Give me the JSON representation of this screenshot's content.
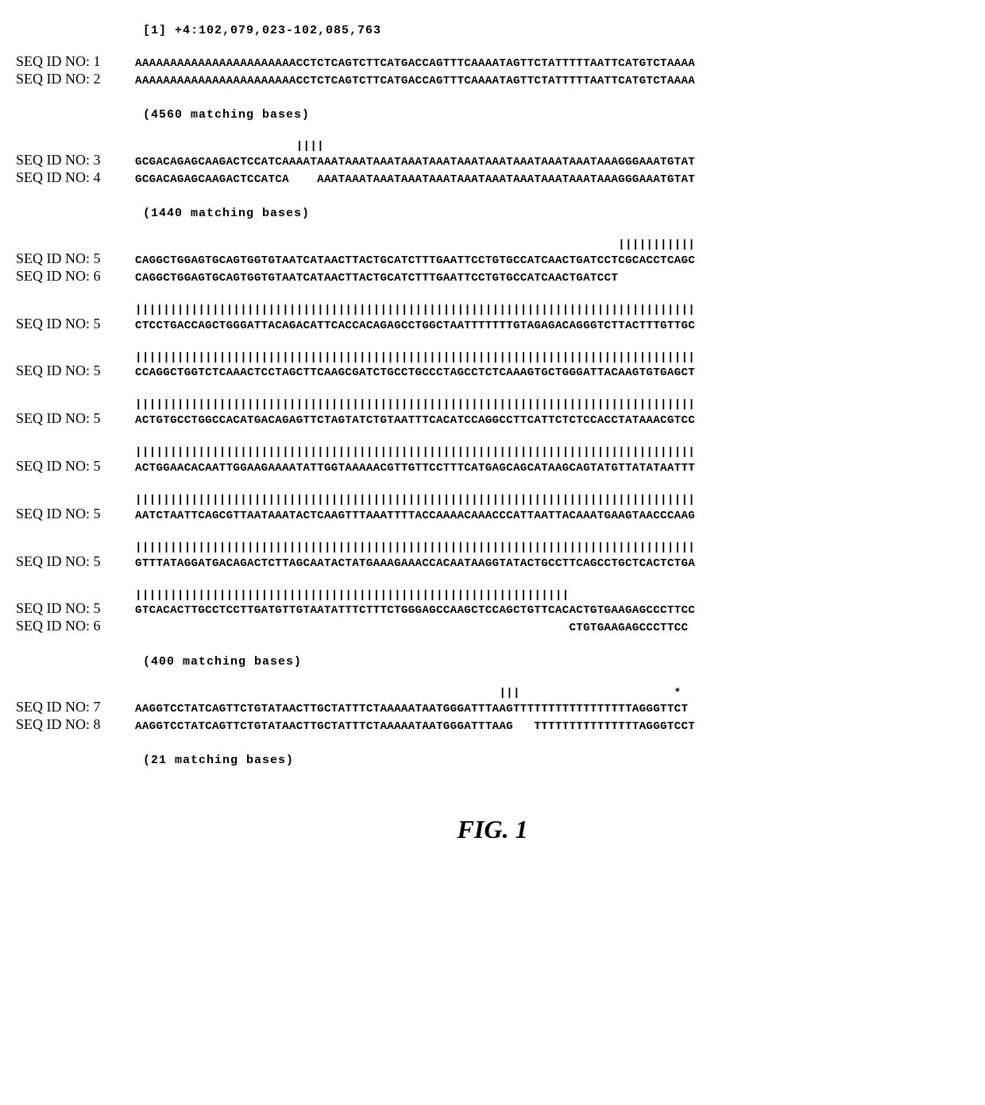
{
  "header": "[1] +4:102,079,023-102,085,763",
  "blocks": [
    {
      "ticks": null,
      "rows": [
        {
          "label": "SEQ ID NO: 1",
          "seq": "AAAAAAAAAAAAAAAAAAAAAAACCTCTCAGTCTTCATGACCAGTTTCAAAATAGTTCTATTTTTAATTCATGTCTAAAA"
        },
        {
          "label": "SEQ ID NO: 2",
          "seq": "AAAAAAAAAAAAAAAAAAAAAAACCTCTCAGTCTTCATGACCAGTTTCAAAATAGTTCTATTTTTAATTCATGTCTAAAA"
        }
      ],
      "note": "(4560 matching bases)"
    },
    {
      "ticks": "                       ||||",
      "rows": [
        {
          "label": "SEQ ID NO: 3",
          "seq": "GCGACAGAGCAAGACTCCATCAAAATAAATAAATAAATAAATAAATAAATAAATAAATAAATAAATAAAGGGAAATGTAT"
        },
        {
          "label": "SEQ ID NO: 4",
          "seq": "GCGACAGAGCAAGACTCCATCA    AAATAAATAAATAAATAAATAAATAAATAAATAAATAAATAAAGGGAAATGTAT"
        }
      ],
      "note": "(1440 matching bases)"
    },
    {
      "ticks": "                                                                     |||||||||||",
      "rows": [
        {
          "label": "SEQ ID NO: 5",
          "seq": "CAGGCTGGAGTGCAGTGGTGTAATCATAACTTACTGCATCTTTGAATTCCTGTGCCATCAACTGATCCTCGCACCTCAGC"
        },
        {
          "label": "SEQ ID NO: 6",
          "seq": "CAGGCTGGAGTGCAGTGGTGTAATCATAACTTACTGCATCTTTGAATTCCTGTGCCATCAACTGATCCT"
        }
      ],
      "note": null
    },
    {
      "ticks": "||||||||||||||||||||||||||||||||||||||||||||||||||||||||||||||||||||||||||||||||",
      "rows": [
        {
          "label": "SEQ ID NO: 5",
          "seq": "CTCCTGACCAGCTGGGATTACAGACATTCACCACAGAGCCTGGCTAATTTTTTTGTAGAGACAGGGTCTTACTTTGTTGC"
        }
      ],
      "note": null
    },
    {
      "ticks": "||||||||||||||||||||||||||||||||||||||||||||||||||||||||||||||||||||||||||||||||",
      "rows": [
        {
          "label": "SEQ ID NO: 5",
          "seq": "CCAGGCTGGTCTCAAACTCCTAGCTTCAAGCGATCTGCCTGCCCTAGCCTCTCAAAGTGCTGGGATTACAAGTGTGAGCT"
        }
      ],
      "note": null
    },
    {
      "ticks": "||||||||||||||||||||||||||||||||||||||||||||||||||||||||||||||||||||||||||||||||",
      "rows": [
        {
          "label": "SEQ ID NO: 5",
          "seq": "ACTGTGCCTGGCCACATGACAGAGTTCTAGTATCTGTAATTTCACATCCAGGCCTTCATTCTCTCCACCTATAAACGTCC"
        }
      ],
      "note": null
    },
    {
      "ticks": "||||||||||||||||||||||||||||||||||||||||||||||||||||||||||||||||||||||||||||||||",
      "rows": [
        {
          "label": "SEQ ID NO: 5",
          "seq": "ACTGGAACACAATTGGAAGAAAATATTGGTAAAAACGTTGTTCCTTTCATGAGCAGCATAAGCAGTATGTTATATAATTT"
        }
      ],
      "note": null
    },
    {
      "ticks": "||||||||||||||||||||||||||||||||||||||||||||||||||||||||||||||||||||||||||||||||",
      "rows": [
        {
          "label": "SEQ ID NO: 5",
          "seq": "AATCTAATTCAGCGTTAATAAATACTCAAGTTTAAATTTTACCAAAACAAACCCATTAATTACAAATGAAGTAACCCAAG"
        }
      ],
      "note": null
    },
    {
      "ticks": "||||||||||||||||||||||||||||||||||||||||||||||||||||||||||||||||||||||||||||||||",
      "rows": [
        {
          "label": "SEQ ID NO: 5",
          "seq": "GTTTATAGGATGACAGACTCTTAGCAATACTATGAAAGAAACCACAATAAGGTATACTGCCTTCAGCCTGCTCACTCTGA"
        }
      ],
      "note": null
    },
    {
      "ticks": "||||||||||||||||||||||||||||||||||||||||||||||||||||||||||||||",
      "rows": [
        {
          "label": "SEQ ID NO: 5",
          "seq": "GTCACACTTGCCTCCTTGATGTTGTAATATTTCTTTCTGGGAGCCAAGCTCCAGCTGTTCACACTGTGAAGAGCCCTTCC"
        },
        {
          "label": "SEQ ID NO: 6",
          "seq": "                                                              CTGTGAAGAGCCCTTCC"
        }
      ],
      "note": "(400 matching bases)"
    },
    {
      "ticks": "                                                    |||                      *",
      "rows": [
        {
          "label": "SEQ ID NO: 7",
          "seq": "AAGGTCCTATCAGTTCTGTATAACTTGCTATTTCTAAAAATAATGGGATTTAAGTTTTTTTTTTTTTTTTTAGGGTTCT"
        },
        {
          "label": "SEQ ID NO: 8",
          "seq": "AAGGTCCTATCAGTTCTGTATAACTTGCTATTTCTAAAAATAATGGGATTTAAG   TTTTTTTTTTTTTTTAGGGTCCT"
        }
      ],
      "note": "(21 matching bases)"
    }
  ],
  "caption": "FIG. 1"
}
